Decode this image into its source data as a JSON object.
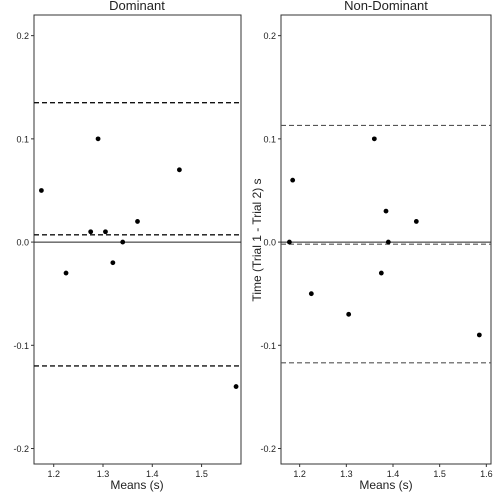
{
  "figure": {
    "shared_ylabel": "Time (Trial 1 - Trial 2) s",
    "shared_xlabel": "Means (s)"
  },
  "chart_data": [
    {
      "type": "scatter",
      "title": "Dominant",
      "xlabel": "Means (s)",
      "ylabel": "Time (Trial 1 - Trial 2) s",
      "xlim": [
        1.16,
        1.58
      ],
      "ylim": [
        -0.215,
        0.22
      ],
      "xticks": [
        1.2,
        1.3,
        1.4,
        1.5
      ],
      "xtick_labels": [
        "1.2",
        "1.3",
        "1.4",
        "1.5"
      ],
      "yticks": [
        -0.2,
        -0.1,
        0.0,
        0.1,
        0.2
      ],
      "ytick_labels": [
        "-0.2",
        "-0.1",
        "0.0",
        "0.1",
        "0.2"
      ],
      "grid": false,
      "points": [
        {
          "x": 1.175,
          "y": 0.05
        },
        {
          "x": 1.225,
          "y": -0.03
        },
        {
          "x": 1.275,
          "y": 0.01
        },
        {
          "x": 1.29,
          "y": 0.1
        },
        {
          "x": 1.305,
          "y": 0.01
        },
        {
          "x": 1.32,
          "y": -0.02
        },
        {
          "x": 1.34,
          "y": 0.0
        },
        {
          "x": 1.37,
          "y": 0.02
        },
        {
          "x": 1.455,
          "y": 0.07
        },
        {
          "x": 1.57,
          "y": -0.14
        }
      ],
      "zero_line": 0.0,
      "mean_bias": 0.007,
      "upper_loa": 0.135,
      "lower_loa": -0.12
    },
    {
      "type": "scatter",
      "title": "Non-Dominant",
      "xlabel": "Means (s)",
      "ylabel": "Time (Trial 1 - Trial 2) s",
      "xlim": [
        1.16,
        1.61
      ],
      "ylim": [
        -0.215,
        0.22
      ],
      "xticks": [
        1.2,
        1.3,
        1.4,
        1.5,
        1.6
      ],
      "xtick_labels": [
        "1.2",
        "1.3",
        "1.4",
        "1.5",
        "1.6"
      ],
      "yticks": [
        -0.2,
        -0.1,
        0.0,
        0.1,
        0.2
      ],
      "ytick_labels": [
        "-0.2",
        "-0.1",
        "0.0",
        "0.1",
        "0.2"
      ],
      "grid": false,
      "points": [
        {
          "x": 1.178,
          "y": 0.0
        },
        {
          "x": 1.185,
          "y": 0.06
        },
        {
          "x": 1.225,
          "y": -0.05
        },
        {
          "x": 1.305,
          "y": -0.07
        },
        {
          "x": 1.36,
          "y": 0.1
        },
        {
          "x": 1.375,
          "y": -0.03
        },
        {
          "x": 1.385,
          "y": 0.03
        },
        {
          "x": 1.39,
          "y": 0.0
        },
        {
          "x": 1.45,
          "y": 0.02
        },
        {
          "x": 1.585,
          "y": -0.09
        }
      ],
      "zero_line": 0.0,
      "mean_bias": -0.002,
      "upper_loa": 0.113,
      "lower_loa": -0.117
    }
  ],
  "colors": {
    "point": "#000000",
    "frame": "#333333",
    "zero_line": "#222222",
    "dominant_dash": "#111111",
    "nondominant_dash": "#555555"
  }
}
